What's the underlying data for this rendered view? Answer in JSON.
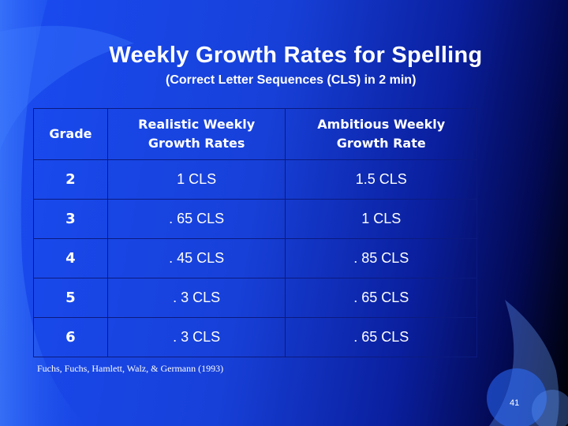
{
  "slide": {
    "title": "Weekly Growth Rates for Spelling",
    "subtitle": "(Correct Letter Sequences (CLS) in 2 min)",
    "table": {
      "headers": [
        [
          "Grade"
        ],
        [
          "Realistic Weekly",
          "Growth Rates"
        ],
        [
          "Ambitious Weekly",
          "Growth Rate"
        ]
      ],
      "rows": [
        [
          "2",
          "1 CLS",
          "1.5 CLS"
        ],
        [
          "3",
          ". 65 CLS",
          "1 CLS"
        ],
        [
          "4",
          ". 45 CLS",
          ". 85 CLS"
        ],
        [
          "5",
          ". 3 CLS",
          ". 65 CLS"
        ],
        [
          "6",
          ". 3 CLS",
          ". 65 CLS"
        ]
      ]
    },
    "citation": "Fuchs, Fuchs, Hamlett, Walz, & Germann (1993)",
    "page_number": "41"
  },
  "colors": {
    "background_accent": "#1a4cf2",
    "table_border": "#0b1a80",
    "text": "#ffffff"
  }
}
